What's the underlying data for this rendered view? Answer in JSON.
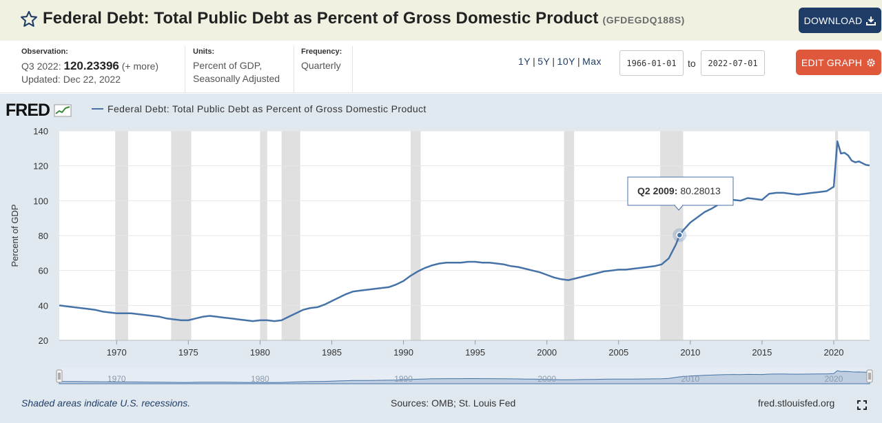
{
  "header": {
    "title": "Federal Debt: Total Public Debt as Percent of Gross Domestic Product",
    "series_id": "(GFDEGDQ188S)",
    "download_label": "DOWNLOAD",
    "star_icon": "star-outline-icon",
    "download_icon": "download-icon"
  },
  "meta": {
    "observation_label": "Observation:",
    "observation_period": "Q3 2022:",
    "observation_value": "120.23396",
    "observation_more": "(+ more)",
    "updated": "Updated: Dec 22, 2022",
    "units_label": "Units:",
    "units_line1": "Percent of GDP,",
    "units_line2": "Seasonally Adjusted",
    "frequency_label": "Frequency:",
    "frequency_value": "Quarterly"
  },
  "range": {
    "options": [
      "1Y",
      "5Y",
      "10Y",
      "Max"
    ],
    "start_date": "1966-01-01",
    "to_label": "to",
    "end_date": "2022-07-01",
    "edit_label": "EDIT GRAPH",
    "edit_icon": "gear-icon"
  },
  "logo": "FRED",
  "legend": "Federal Debt: Total Public Debt as Percent of Gross Domestic Product",
  "tooltip": {
    "period": "Q2 2009:",
    "value": "80.28013"
  },
  "footer": {
    "recession_note": "Shaded areas indicate U.S. recessions.",
    "sources": "Sources: OMB; St. Louis Fed",
    "site": "fred.stlouisfed.org",
    "expand_icon": "fullscreen-icon"
  },
  "colors": {
    "line": "#4572a7",
    "recession": "#e0e0e0",
    "download": "#1f3c66",
    "edit": "#e0583c",
    "panel": "#e1e9f0"
  },
  "chart_data": {
    "type": "line",
    "title": "",
    "xlabel": "",
    "ylabel": "Percent of GDP",
    "ylim": [
      20,
      140
    ],
    "xlim": [
      1966.0,
      2022.5
    ],
    "yticks": [
      20,
      40,
      60,
      80,
      100,
      120,
      140
    ],
    "xticks": [
      1970,
      1975,
      1980,
      1985,
      1990,
      1995,
      2000,
      2005,
      2010,
      2015,
      2020
    ],
    "navigator_ticks": [
      1970,
      1980,
      1990,
      2000,
      2010,
      2020
    ],
    "grid": true,
    "recessions": [
      [
        1969.9,
        1970.8
      ],
      [
        1973.8,
        1975.2
      ],
      [
        1980.0,
        1980.5
      ],
      [
        1981.5,
        1982.8
      ],
      [
        1990.5,
        1991.2
      ],
      [
        2001.2,
        2001.9
      ],
      [
        2007.9,
        2009.5
      ],
      [
        2020.1,
        2020.3
      ]
    ],
    "highlight": {
      "x": 2009.25,
      "y": 80.28013
    },
    "series": [
      {
        "x": [
          1966.0,
          1966.5,
          1967.0,
          1967.5,
          1968.0,
          1968.5,
          1969.0,
          1969.5,
          1970.0,
          1970.5,
          1971.0,
          1971.5,
          1972.0,
          1972.5,
          1973.0,
          1973.5,
          1974.0,
          1974.5,
          1975.0,
          1975.5,
          1976.0,
          1976.5,
          1977.0,
          1977.5,
          1978.0,
          1978.5,
          1979.0,
          1979.5,
          1980.0,
          1980.5,
          1981.0,
          1981.5,
          1982.0,
          1982.5,
          1983.0,
          1983.5,
          1984.0,
          1984.5,
          1985.0,
          1985.5,
          1986.0,
          1986.5,
          1987.0,
          1987.5,
          1988.0,
          1988.5,
          1989.0,
          1989.5,
          1990.0,
          1990.5,
          1991.0,
          1991.5,
          1992.0,
          1992.5,
          1993.0,
          1993.5,
          1994.0,
          1994.5,
          1995.0,
          1995.5,
          1996.0,
          1996.5,
          1997.0,
          1997.5,
          1998.0,
          1998.5,
          1999.0,
          1999.5,
          2000.0,
          2000.5,
          2001.0,
          2001.5,
          2002.0,
          2002.5,
          2003.0,
          2003.5,
          2004.0,
          2004.5,
          2005.0,
          2005.5,
          2006.0,
          2006.5,
          2007.0,
          2007.5,
          2008.0,
          2008.5,
          2009.0,
          2009.25,
          2009.5,
          2010.0,
          2010.5,
          2011.0,
          2011.5,
          2012.0,
          2012.5,
          2013.0,
          2013.5,
          2014.0,
          2014.5,
          2015.0,
          2015.5,
          2016.0,
          2016.5,
          2017.0,
          2017.5,
          2018.0,
          2018.5,
          2019.0,
          2019.5,
          2020.0,
          2020.25,
          2020.5,
          2020.75,
          2021.0,
          2021.25,
          2021.5,
          2021.75,
          2022.0,
          2022.25,
          2022.5
        ],
        "y": [
          40.0,
          39.5,
          39.0,
          38.5,
          38.0,
          37.5,
          36.5,
          36.0,
          35.5,
          35.5,
          35.5,
          35.0,
          34.5,
          34.0,
          33.5,
          32.5,
          32.0,
          31.5,
          31.5,
          32.5,
          33.5,
          34.0,
          33.5,
          33.0,
          32.5,
          32.0,
          31.5,
          31.0,
          31.5,
          31.5,
          31.0,
          31.5,
          33.5,
          35.5,
          37.5,
          38.5,
          39.0,
          40.5,
          42.5,
          44.5,
          46.5,
          48.0,
          48.5,
          49.0,
          49.5,
          50.0,
          50.5,
          52.0,
          54.0,
          57.0,
          59.5,
          61.5,
          63.0,
          64.0,
          64.5,
          64.5,
          64.5,
          65.0,
          65.0,
          64.5,
          64.5,
          64.0,
          63.5,
          62.5,
          62.0,
          61.0,
          60.0,
          59.0,
          57.5,
          56.0,
          55.0,
          54.5,
          55.5,
          56.5,
          57.5,
          58.5,
          59.5,
          60.0,
          60.5,
          60.5,
          61.0,
          61.5,
          62.0,
          62.5,
          63.5,
          67.0,
          75.0,
          80.28013,
          83.0,
          87.5,
          90.5,
          93.5,
          95.5,
          98.0,
          100.0,
          100.5,
          100.0,
          101.5,
          101.0,
          100.5,
          104.0,
          104.5,
          104.5,
          104.0,
          103.5,
          104.0,
          104.5,
          105.0,
          105.5,
          108.0,
          134.0,
          127.0,
          127.5,
          126.0,
          123.0,
          122.0,
          122.5,
          121.5,
          120.5,
          120.23396
        ]
      }
    ]
  }
}
